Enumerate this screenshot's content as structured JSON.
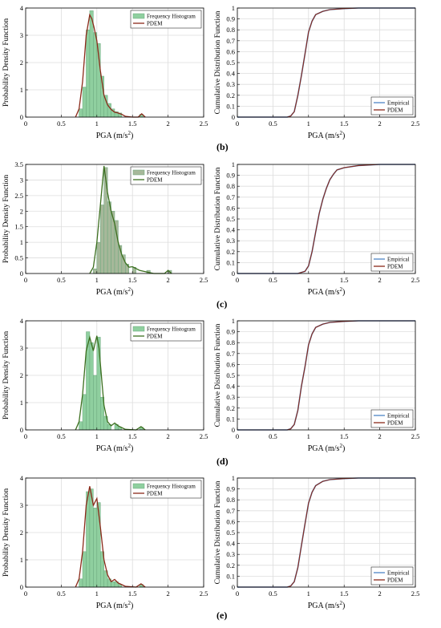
{
  "panel_labels": [
    "(b)",
    "(c)",
    "(d)",
    "(e)"
  ],
  "colors": {
    "histogram_fill": "#8fcf9f",
    "histogram_edge": "#6aa77c",
    "histogram_fill_c": "#a6b89a",
    "pdem_red": "#8b2a1a",
    "pdem_green": "#3c6f1f",
    "empirical_blue": "#4f86c6",
    "grid": "#dddddd"
  },
  "chart_data": [
    {
      "id": "b-pdf",
      "type": "bar+line",
      "row": 0,
      "col": 0,
      "xlabel": "PGA (m/s²)",
      "ylabel": "Probability Density Function",
      "xlim": [
        0,
        2.5
      ],
      "ylim": [
        0,
        4
      ],
      "xticks": [
        "0",
        "0.5",
        "1",
        "1.5",
        "2",
        "2.5"
      ],
      "yticks": [
        "0",
        "1",
        "2",
        "3",
        "4"
      ],
      "grid": true,
      "legend_placement": "top-right",
      "legend": [
        "Frequency Histogram",
        "PDEM"
      ],
      "bin_width": 0.05,
      "bins": [
        [
          0.75,
          0.3
        ],
        [
          0.8,
          1.1
        ],
        [
          0.85,
          3.2
        ],
        [
          0.9,
          3.9
        ],
        [
          0.95,
          3.1
        ],
        [
          1.0,
          2.7
        ],
        [
          1.05,
          1.5
        ],
        [
          1.1,
          0.8
        ],
        [
          1.15,
          0.5
        ],
        [
          1.2,
          0.3
        ],
        [
          1.25,
          0.2
        ],
        [
          1.3,
          0.15
        ],
        [
          1.6,
          0.1
        ]
      ],
      "pdem_color": "red",
      "pdem": [
        [
          0.7,
          0
        ],
        [
          0.75,
          0.3
        ],
        [
          0.8,
          1.3
        ],
        [
          0.85,
          3.0
        ],
        [
          0.9,
          3.75
        ],
        [
          0.93,
          3.6
        ],
        [
          0.96,
          3.3
        ],
        [
          1.0,
          2.8
        ],
        [
          1.05,
          1.7
        ],
        [
          1.1,
          0.8
        ],
        [
          1.15,
          0.45
        ],
        [
          1.2,
          0.28
        ],
        [
          1.25,
          0.18
        ],
        [
          1.3,
          0.15
        ],
        [
          1.35,
          0.1
        ],
        [
          1.4,
          0.03
        ],
        [
          1.5,
          0
        ],
        [
          1.58,
          0
        ],
        [
          1.63,
          0.12
        ],
        [
          1.68,
          0
        ]
      ]
    },
    {
      "id": "b-cdf",
      "type": "line",
      "row": 0,
      "col": 1,
      "xlabel": "PGA (m/s²)",
      "ylabel": "Cumulative Distribution Function",
      "xlim": [
        0,
        2.5
      ],
      "ylim": [
        0,
        1
      ],
      "xticks": [
        "0",
        "0.5",
        "1",
        "1.5",
        "2",
        "2.5"
      ],
      "yticks": [
        "0",
        "0.1",
        "0.2",
        "0.3",
        "0.4",
        "0.5",
        "0.6",
        "0.7",
        "0.8",
        "0.9",
        "1"
      ],
      "grid": true,
      "legend_placement": "bottom-right",
      "legend": [
        "Empirical",
        "PDEM"
      ],
      "cdf": [
        [
          0,
          0
        ],
        [
          0.7,
          0
        ],
        [
          0.75,
          0.01
        ],
        [
          0.8,
          0.05
        ],
        [
          0.85,
          0.2
        ],
        [
          0.9,
          0.38
        ],
        [
          0.95,
          0.58
        ],
        [
          1.0,
          0.78
        ],
        [
          1.05,
          0.88
        ],
        [
          1.1,
          0.94
        ],
        [
          1.2,
          0.97
        ],
        [
          1.3,
          0.985
        ],
        [
          1.5,
          0.995
        ],
        [
          1.7,
          1.0
        ],
        [
          2.5,
          1.0
        ]
      ]
    },
    {
      "id": "c-pdf",
      "type": "bar+line",
      "row": 1,
      "col": 0,
      "xlabel": "PGA (m/s²)",
      "ylabel": "Probability Density Function",
      "xlim": [
        0,
        2.5
      ],
      "ylim": [
        0,
        3.5
      ],
      "xticks": [
        "0",
        "0.5",
        "1",
        "1.5",
        "2",
        "2.5"
      ],
      "yticks": [
        "0",
        "0.5",
        "1",
        "1.5",
        "2",
        "2.5",
        "3",
        "3.5"
      ],
      "grid": true,
      "legend_placement": "top-right",
      "legend": [
        "Frequency Histogram",
        "PDEM"
      ],
      "bin_width": 0.05,
      "bins": [
        [
          0.95,
          0.15
        ],
        [
          1.0,
          1.0
        ],
        [
          1.05,
          2.2
        ],
        [
          1.1,
          3.4
        ],
        [
          1.15,
          2.3
        ],
        [
          1.2,
          2.0
        ],
        [
          1.25,
          1.7
        ],
        [
          1.3,
          0.9
        ],
        [
          1.35,
          0.6
        ],
        [
          1.4,
          0.3
        ],
        [
          1.5,
          0.2
        ],
        [
          1.7,
          0.1
        ],
        [
          2.0,
          0.1
        ]
      ],
      "pdem_color": "green",
      "pdem": [
        [
          0.9,
          0
        ],
        [
          0.95,
          0.2
        ],
        [
          1.0,
          1.0
        ],
        [
          1.05,
          2.2
        ],
        [
          1.1,
          3.45
        ],
        [
          1.15,
          2.6
        ],
        [
          1.2,
          2.0
        ],
        [
          1.25,
          1.6
        ],
        [
          1.3,
          1.0
        ],
        [
          1.35,
          0.6
        ],
        [
          1.4,
          0.35
        ],
        [
          1.45,
          0.2
        ],
        [
          1.5,
          0.22
        ],
        [
          1.6,
          0.1
        ],
        [
          1.7,
          0.05
        ],
        [
          1.8,
          0
        ],
        [
          1.95,
          0
        ],
        [
          2.0,
          0.1
        ],
        [
          2.05,
          0
        ]
      ]
    },
    {
      "id": "c-cdf",
      "type": "line",
      "row": 1,
      "col": 1,
      "xlabel": "PGA (m/s²)",
      "ylabel": "Cumulative Distribution Function",
      "xlim": [
        0,
        2.5
      ],
      "ylim": [
        0,
        1
      ],
      "xticks": [
        "0",
        "0.5",
        "1",
        "1.5",
        "2",
        "2.5"
      ],
      "yticks": [
        "0",
        "0.1",
        "0.2",
        "0.3",
        "0.4",
        "0.5",
        "0.6",
        "0.7",
        "0.8",
        "0.9",
        "1"
      ],
      "grid": true,
      "legend_placement": "bottom-right",
      "legend": [
        "Empirical",
        "PDEM"
      ],
      "cdf": [
        [
          0,
          0
        ],
        [
          0.85,
          0
        ],
        [
          0.95,
          0.02
        ],
        [
          1.0,
          0.07
        ],
        [
          1.05,
          0.2
        ],
        [
          1.1,
          0.38
        ],
        [
          1.15,
          0.55
        ],
        [
          1.2,
          0.68
        ],
        [
          1.25,
          0.78
        ],
        [
          1.3,
          0.86
        ],
        [
          1.35,
          0.91
        ],
        [
          1.4,
          0.95
        ],
        [
          1.5,
          0.97
        ],
        [
          1.7,
          0.99
        ],
        [
          2.0,
          1.0
        ],
        [
          2.5,
          1.0
        ]
      ]
    },
    {
      "id": "d-pdf",
      "type": "bar+line",
      "row": 2,
      "col": 0,
      "xlabel": "PGA (m/s²)",
      "ylabel": "Probability Density Function",
      "xlim": [
        0,
        2.5
      ],
      "ylim": [
        0,
        4
      ],
      "xticks": [
        "0",
        "0.5",
        "1",
        "1.5",
        "2",
        "2.5"
      ],
      "yticks": [
        "0",
        "1",
        "2",
        "3",
        "4"
      ],
      "grid": true,
      "legend_placement": "top-right",
      "legend": [
        "Frequency Histogram",
        "PDEM"
      ],
      "bin_width": 0.05,
      "bins": [
        [
          0.75,
          0.3
        ],
        [
          0.8,
          1.3
        ],
        [
          0.85,
          3.6
        ],
        [
          0.9,
          3.2
        ],
        [
          0.95,
          2.0
        ],
        [
          1.0,
          3.4
        ],
        [
          1.05,
          1.2
        ],
        [
          1.1,
          0.5
        ],
        [
          1.15,
          0.2
        ],
        [
          1.25,
          0.2
        ],
        [
          1.3,
          0.1
        ],
        [
          1.6,
          0.1
        ]
      ],
      "pdem_color": "green",
      "pdem": [
        [
          0.7,
          0
        ],
        [
          0.75,
          0.3
        ],
        [
          0.8,
          1.3
        ],
        [
          0.85,
          2.9
        ],
        [
          0.9,
          3.4
        ],
        [
          0.95,
          2.9
        ],
        [
          1.0,
          3.45
        ],
        [
          1.03,
          3.0
        ],
        [
          1.07,
          1.8
        ],
        [
          1.1,
          0.9
        ],
        [
          1.15,
          0.3
        ],
        [
          1.2,
          0.15
        ],
        [
          1.25,
          0.25
        ],
        [
          1.3,
          0.15
        ],
        [
          1.4,
          0.02
        ],
        [
          1.55,
          0
        ],
        [
          1.62,
          0.12
        ],
        [
          1.68,
          0
        ]
      ]
    },
    {
      "id": "d-cdf",
      "type": "line",
      "row": 2,
      "col": 1,
      "xlabel": "PGA (m/s²)",
      "ylabel": "Cumulative Distribution Function",
      "xlim": [
        0,
        2.5
      ],
      "ylim": [
        0,
        1
      ],
      "xticks": [
        "0",
        "0.5",
        "1",
        "1.5",
        "2",
        "2.5"
      ],
      "yticks": [
        "0",
        "0.1",
        "0.2",
        "0.3",
        "0.4",
        "0.5",
        "0.6",
        "0.7",
        "0.8",
        "0.9",
        "1"
      ],
      "grid": true,
      "legend_placement": "bottom-right",
      "legend": [
        "Empirical",
        "PDEM"
      ],
      "cdf": [
        [
          0,
          0
        ],
        [
          0.7,
          0
        ],
        [
          0.75,
          0.01
        ],
        [
          0.8,
          0.05
        ],
        [
          0.85,
          0.18
        ],
        [
          0.9,
          0.4
        ],
        [
          0.95,
          0.58
        ],
        [
          1.0,
          0.78
        ],
        [
          1.05,
          0.88
        ],
        [
          1.1,
          0.94
        ],
        [
          1.2,
          0.97
        ],
        [
          1.3,
          0.985
        ],
        [
          1.5,
          0.995
        ],
        [
          1.7,
          1.0
        ],
        [
          2.5,
          1.0
        ]
      ]
    },
    {
      "id": "e-pdf",
      "type": "bar+line",
      "row": 3,
      "col": 0,
      "xlabel": "PGA (m/s²)",
      "ylabel": "Probability Density Function",
      "xlim": [
        0,
        2.5
      ],
      "ylim": [
        0,
        4
      ],
      "xticks": [
        "0",
        "0.5",
        "1",
        "1.5",
        "2",
        "2.5"
      ],
      "yticks": [
        "0",
        "1",
        "2",
        "3",
        "4"
      ],
      "grid": true,
      "legend_placement": "top-right",
      "legend": [
        "Frequency Histogram",
        "PDEM"
      ],
      "bin_width": 0.05,
      "bins": [
        [
          0.75,
          0.3
        ],
        [
          0.8,
          1.3
        ],
        [
          0.85,
          3.5
        ],
        [
          0.9,
          3.6
        ],
        [
          0.95,
          2.9
        ],
        [
          1.0,
          3.1
        ],
        [
          1.05,
          1.3
        ],
        [
          1.1,
          0.6
        ],
        [
          1.15,
          0.3
        ],
        [
          1.2,
          0.2
        ],
        [
          1.25,
          0.2
        ],
        [
          1.3,
          0.1
        ],
        [
          1.6,
          0.1
        ]
      ],
      "pdem_color": "red",
      "pdem": [
        [
          0.7,
          0
        ],
        [
          0.75,
          0.3
        ],
        [
          0.8,
          1.3
        ],
        [
          0.85,
          3.0
        ],
        [
          0.9,
          3.7
        ],
        [
          0.95,
          3.0
        ],
        [
          1.0,
          3.25
        ],
        [
          1.05,
          2.2
        ],
        [
          1.1,
          1.0
        ],
        [
          1.15,
          0.45
        ],
        [
          1.2,
          0.2
        ],
        [
          1.25,
          0.28
        ],
        [
          1.3,
          0.15
        ],
        [
          1.4,
          0.03
        ],
        [
          1.55,
          0
        ],
        [
          1.62,
          0.12
        ],
        [
          1.68,
          0
        ]
      ]
    },
    {
      "id": "e-cdf",
      "type": "line",
      "row": 3,
      "col": 1,
      "xlabel": "PGA (m/s²)",
      "ylabel": "Cumulative Distribution Function",
      "xlim": [
        0,
        2.5
      ],
      "ylim": [
        0,
        1
      ],
      "xticks": [
        "0",
        "0.5",
        "1",
        "1.5",
        "2",
        "2.5"
      ],
      "yticks": [
        "0",
        "0.1",
        "0.2",
        "0.3",
        "0.4",
        "0.5",
        "0.6",
        "0.7",
        "0.8",
        "0.9",
        "1"
      ],
      "grid": true,
      "legend_placement": "bottom-right",
      "legend": [
        "Empirical",
        "PDEM"
      ],
      "cdf": [
        [
          0,
          0
        ],
        [
          0.7,
          0
        ],
        [
          0.75,
          0.01
        ],
        [
          0.8,
          0.05
        ],
        [
          0.85,
          0.18
        ],
        [
          0.9,
          0.38
        ],
        [
          0.95,
          0.58
        ],
        [
          1.0,
          0.77
        ],
        [
          1.05,
          0.87
        ],
        [
          1.1,
          0.93
        ],
        [
          1.2,
          0.97
        ],
        [
          1.3,
          0.985
        ],
        [
          1.5,
          0.995
        ],
        [
          1.7,
          1.0
        ],
        [
          2.5,
          1.0
        ]
      ]
    }
  ]
}
